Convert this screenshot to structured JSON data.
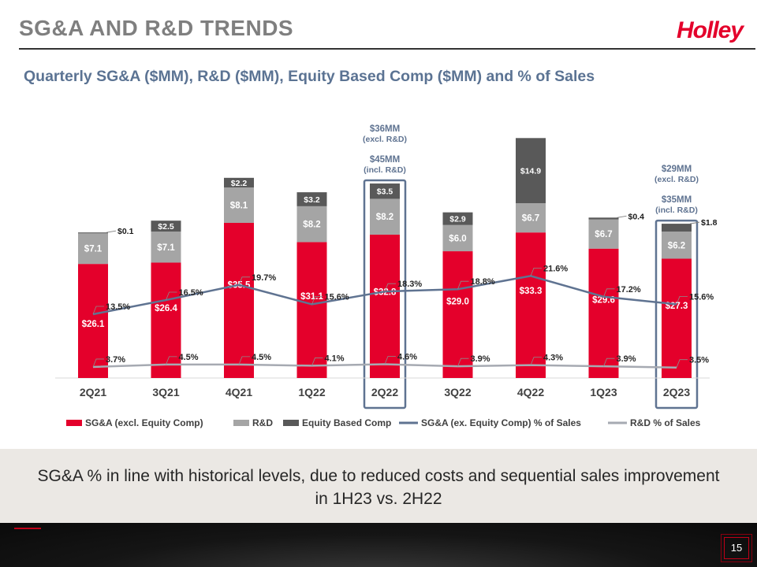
{
  "slide": {
    "title": "SG&A AND R&D TRENDS",
    "logo_text": "Holley",
    "subtitle": "Quarterly SG&A ($MM), R&D ($MM), Equity Based Comp ($MM) and %  of Sales",
    "footer_text": "SG&A % in line with historical levels, due to reduced costs and sequential sales improvement in 1H23 vs. 2H22",
    "page_number": "15"
  },
  "chart_data": {
    "type": "bar",
    "stacked": true,
    "categories": [
      "2Q21",
      "3Q21",
      "4Q21",
      "1Q22",
      "2Q22",
      "3Q22",
      "4Q22",
      "1Q23",
      "2Q23"
    ],
    "series": [
      {
        "name": "SG&A (excl. Equity Comp)",
        "values": [
          26.1,
          26.4,
          35.5,
          31.1,
          32.8,
          29.0,
          33.3,
          29.6,
          27.3
        ],
        "labels": [
          "$26.1",
          "$26.4",
          "$35.5",
          "$31.1",
          "$32.8",
          "$29.0",
          "$33.3",
          "$29.6",
          "$27.3"
        ],
        "color": "#e4002b"
      },
      {
        "name": "R&D",
        "values": [
          7.1,
          7.1,
          8.1,
          8.2,
          8.2,
          6.0,
          6.7,
          6.7,
          6.2
        ],
        "labels": [
          "$7.1",
          "$7.1",
          "$8.1",
          "$8.2",
          "$8.2",
          "$6.0",
          "$6.7",
          "$6.7",
          "$6.2"
        ],
        "color": "#a5a5a5"
      },
      {
        "name": "Equity Based Comp",
        "values": [
          0.1,
          2.5,
          2.2,
          3.2,
          3.5,
          2.9,
          14.9,
          0.4,
          1.8
        ],
        "labels": [
          "$0.1",
          "$2.5",
          "$2.2",
          "$3.2",
          "$3.5",
          "$2.9",
          "$14.9",
          "$0.4",
          "$1.8"
        ],
        "color": "#595959"
      }
    ],
    "line_series": [
      {
        "name": "SG&A  (ex. Equity Comp) % of Sales",
        "values": [
          13.5,
          16.5,
          19.7,
          15.6,
          18.3,
          18.8,
          21.6,
          17.2,
          15.6
        ],
        "labels": [
          "13.5%",
          "16.5%",
          "19.7%",
          "15.6%",
          "18.3%",
          "18.8%",
          "21.6%",
          "17.2%",
          "15.6%"
        ],
        "color": "#5f7391"
      },
      {
        "name": "R&D % of Sales",
        "values": [
          3.7,
          4.5,
          4.5,
          4.1,
          4.6,
          3.9,
          4.3,
          3.9,
          3.5
        ],
        "labels": [
          "3.7%",
          "4.5%",
          "4.5%",
          "4.1%",
          "4.6%",
          "3.9%",
          "4.3%",
          "3.9%",
          "3.5%"
        ],
        "color": "#a6aab2"
      }
    ],
    "highlighted": [
      "2Q22",
      "2Q23"
    ],
    "annotations": [
      {
        "category": "2Q22",
        "lines": [
          "$36MM",
          "(excl. R&D)",
          "",
          "$45MM",
          "(incl. R&D)"
        ]
      },
      {
        "category": "2Q23",
        "lines": [
          "$29MM",
          "(excl. R&D)",
          "",
          "$35MM",
          "(incl. R&D)"
        ]
      }
    ],
    "legend_position": "bottom",
    "grid": false,
    "colors": {
      "annotation": "#5f7391",
      "highlight_box": "#5f7391"
    }
  }
}
